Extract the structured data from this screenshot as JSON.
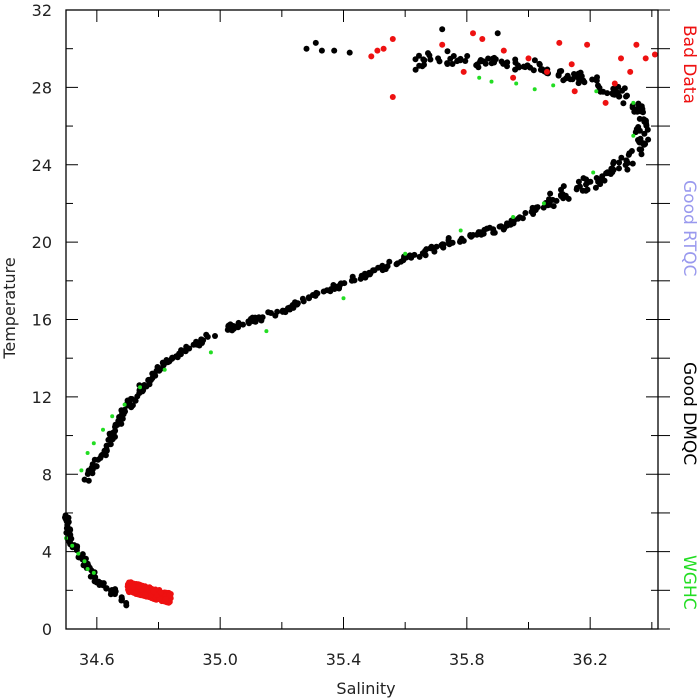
{
  "chart_data": {
    "type": "scatter",
    "xlabel": "Salinity",
    "ylabel": "Temperature",
    "xlim": [
      34.5,
      36.42
    ],
    "ylim": [
      0,
      32
    ],
    "xticks": [
      34.6,
      35.0,
      35.4,
      35.8,
      36.2
    ],
    "yticks": [
      0,
      4,
      8,
      12,
      16,
      20,
      24,
      28,
      32
    ],
    "x_minor_step": 0.2,
    "y_minor_step": 2,
    "grid": false,
    "legend_placement": "right, vertical",
    "series": [
      {
        "name": "Good DMQC",
        "color": "#000000",
        "profile": [
          [
            34.5,
            6.0
          ],
          [
            34.5,
            5.5
          ],
          [
            34.51,
            5.0
          ],
          [
            34.51,
            4.6
          ],
          [
            34.56,
            3.5
          ],
          [
            34.59,
            2.7
          ],
          [
            34.64,
            2.0
          ],
          [
            34.68,
            1.6
          ],
          [
            34.7,
            1.3
          ],
          [
            34.56,
            7.8
          ],
          [
            34.58,
            8.2
          ],
          [
            34.61,
            8.7
          ],
          [
            34.63,
            9.2
          ],
          [
            34.65,
            10.0
          ],
          [
            34.68,
            11.0
          ],
          [
            34.72,
            12.0
          ],
          [
            34.78,
            13.0
          ],
          [
            34.85,
            14.0
          ],
          [
            34.95,
            15.0
          ],
          [
            35.07,
            15.8
          ],
          [
            35.2,
            16.5
          ],
          [
            35.35,
            17.5
          ],
          [
            35.5,
            18.5
          ],
          [
            35.62,
            19.3
          ],
          [
            35.75,
            20.0
          ],
          [
            35.92,
            20.8
          ],
          [
            36.03,
            21.8
          ],
          [
            36.13,
            22.5
          ],
          [
            36.22,
            23.2
          ],
          [
            36.3,
            24.0
          ],
          [
            36.36,
            25.0
          ],
          [
            36.38,
            26.0
          ],
          [
            36.36,
            27.0
          ],
          [
            36.28,
            27.8
          ],
          [
            36.2,
            28.3
          ],
          [
            36.1,
            28.7
          ],
          [
            36.0,
            29.1
          ],
          [
            35.9,
            29.3
          ],
          [
            35.8,
            29.5
          ],
          [
            35.72,
            29.4
          ],
          [
            35.63,
            29.3
          ]
        ],
        "spread": [
          0.025,
          0.35
        ],
        "extra_points": [
          [
            35.28,
            30.0
          ],
          [
            35.31,
            30.3
          ],
          [
            35.33,
            29.9
          ],
          [
            35.37,
            29.9
          ],
          [
            35.42,
            29.8
          ],
          [
            35.72,
            31.0
          ],
          [
            35.9,
            30.8
          ]
        ]
      },
      {
        "name": "Bad Data",
        "color": "#ee1111",
        "cluster": {
          "x_range": [
            34.7,
            34.84
          ],
          "y_range": [
            1.3,
            2.2
          ]
        },
        "points": [
          [
            35.49,
            29.6
          ],
          [
            35.51,
            29.9
          ],
          [
            35.53,
            30.0
          ],
          [
            35.56,
            30.5
          ],
          [
            35.56,
            27.5
          ],
          [
            35.72,
            30.2
          ],
          [
            35.79,
            28.8
          ],
          [
            35.82,
            30.8
          ],
          [
            35.85,
            30.5
          ],
          [
            35.92,
            29.9
          ],
          [
            36.0,
            29.5
          ],
          [
            36.06,
            28.8
          ],
          [
            36.1,
            30.3
          ],
          [
            36.15,
            27.8
          ],
          [
            36.19,
            30.2
          ],
          [
            36.25,
            27.2
          ],
          [
            36.3,
            29.5
          ],
          [
            36.33,
            28.8
          ],
          [
            36.35,
            30.2
          ],
          [
            36.38,
            29.5
          ],
          [
            36.41,
            29.7
          ],
          [
            35.95,
            28.5
          ],
          [
            36.14,
            29.2
          ],
          [
            36.28,
            28.2
          ]
        ]
      },
      {
        "name": "Good RTQC",
        "color": "#9999ee",
        "points": []
      },
      {
        "name": "WGHC",
        "color": "#22dd22",
        "points": [
          [
            34.5,
            4.7
          ],
          [
            34.52,
            4.3
          ],
          [
            34.54,
            3.9
          ],
          [
            34.56,
            3.5
          ],
          [
            34.57,
            3.1
          ],
          [
            34.59,
            2.9
          ],
          [
            34.55,
            8.2
          ],
          [
            34.57,
            9.1
          ],
          [
            34.59,
            9.6
          ],
          [
            34.62,
            10.3
          ],
          [
            34.65,
            11.0
          ],
          [
            34.69,
            11.6
          ],
          [
            34.74,
            12.5
          ],
          [
            34.82,
            13.4
          ],
          [
            34.97,
            14.3
          ],
          [
            35.15,
            15.4
          ],
          [
            35.4,
            17.1
          ],
          [
            35.6,
            19.4
          ],
          [
            35.78,
            20.6
          ],
          [
            35.95,
            21.3
          ],
          [
            36.05,
            22.0
          ],
          [
            36.21,
            23.6
          ],
          [
            36.34,
            25.5
          ],
          [
            36.34,
            27.2
          ],
          [
            36.22,
            27.8
          ],
          [
            36.08,
            28.1
          ],
          [
            35.96,
            28.2
          ],
          [
            35.84,
            28.5
          ],
          [
            35.88,
            28.3
          ],
          [
            36.02,
            27.9
          ]
        ]
      }
    ]
  }
}
